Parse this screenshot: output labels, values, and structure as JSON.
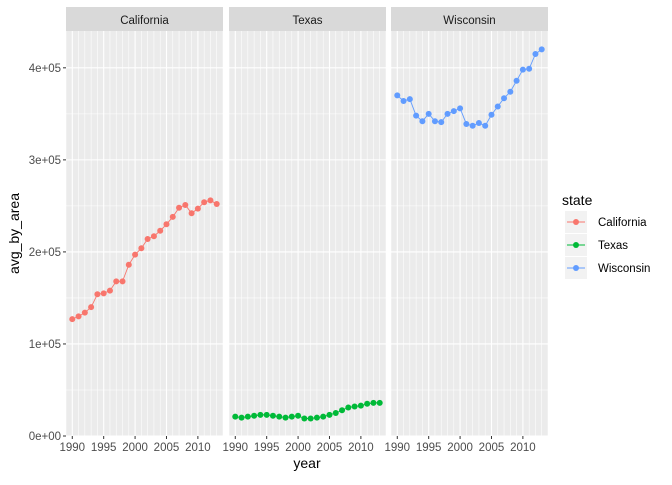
{
  "chart_data": {
    "type": "line",
    "facet_by": "state",
    "xlabel": "year",
    "ylabel": "avg_by_area",
    "xlim": [
      1989,
      2014
    ],
    "ylim": [
      0,
      440000
    ],
    "x_ticks": [
      1990,
      1995,
      2000,
      2005,
      2010
    ],
    "x_tick_labels": [
      "1990",
      "1995",
      "2000",
      "2005",
      "2010"
    ],
    "y_ticks": [
      0,
      100000,
      200000,
      300000,
      400000
    ],
    "y_tick_labels": [
      "0e+00",
      "1e+05",
      "2e+05",
      "3e+05",
      "4e+05"
    ],
    "grid": true,
    "legend": {
      "title": "state",
      "position": "right"
    },
    "x": [
      1990,
      1991,
      1992,
      1993,
      1994,
      1995,
      1996,
      1997,
      1998,
      1999,
      2000,
      2001,
      2002,
      2003,
      2004,
      2005,
      2006,
      2007,
      2008,
      2009,
      2010,
      2011,
      2012,
      2013
    ],
    "series": [
      {
        "name": "California",
        "color": "#F8766D",
        "values": [
          127000,
          130000,
          134000,
          140000,
          154000,
          155000,
          158000,
          168000,
          168000,
          186000,
          197000,
          204000,
          214000,
          217000,
          223000,
          230000,
          238000,
          248000,
          251000,
          242000,
          247000,
          254000,
          256000,
          252000
        ]
      },
      {
        "name": "Texas",
        "color": "#00BA38",
        "values": [
          21000,
          20000,
          21000,
          22000,
          23000,
          23000,
          22000,
          21000,
          20000,
          21000,
          22000,
          19000,
          19000,
          20000,
          21000,
          23000,
          25000,
          28000,
          31000,
          32000,
          33000,
          35000,
          36000,
          36000
        ]
      },
      {
        "name": "Wisconsin",
        "color": "#619CFF",
        "values": [
          370000,
          364000,
          366000,
          348000,
          342000,
          350000,
          342000,
          341000,
          350000,
          353000,
          356000,
          339000,
          337000,
          340000,
          337000,
          349000,
          358000,
          367000,
          374000,
          386000,
          398000,
          399000,
          415000,
          420000
        ]
      }
    ]
  }
}
